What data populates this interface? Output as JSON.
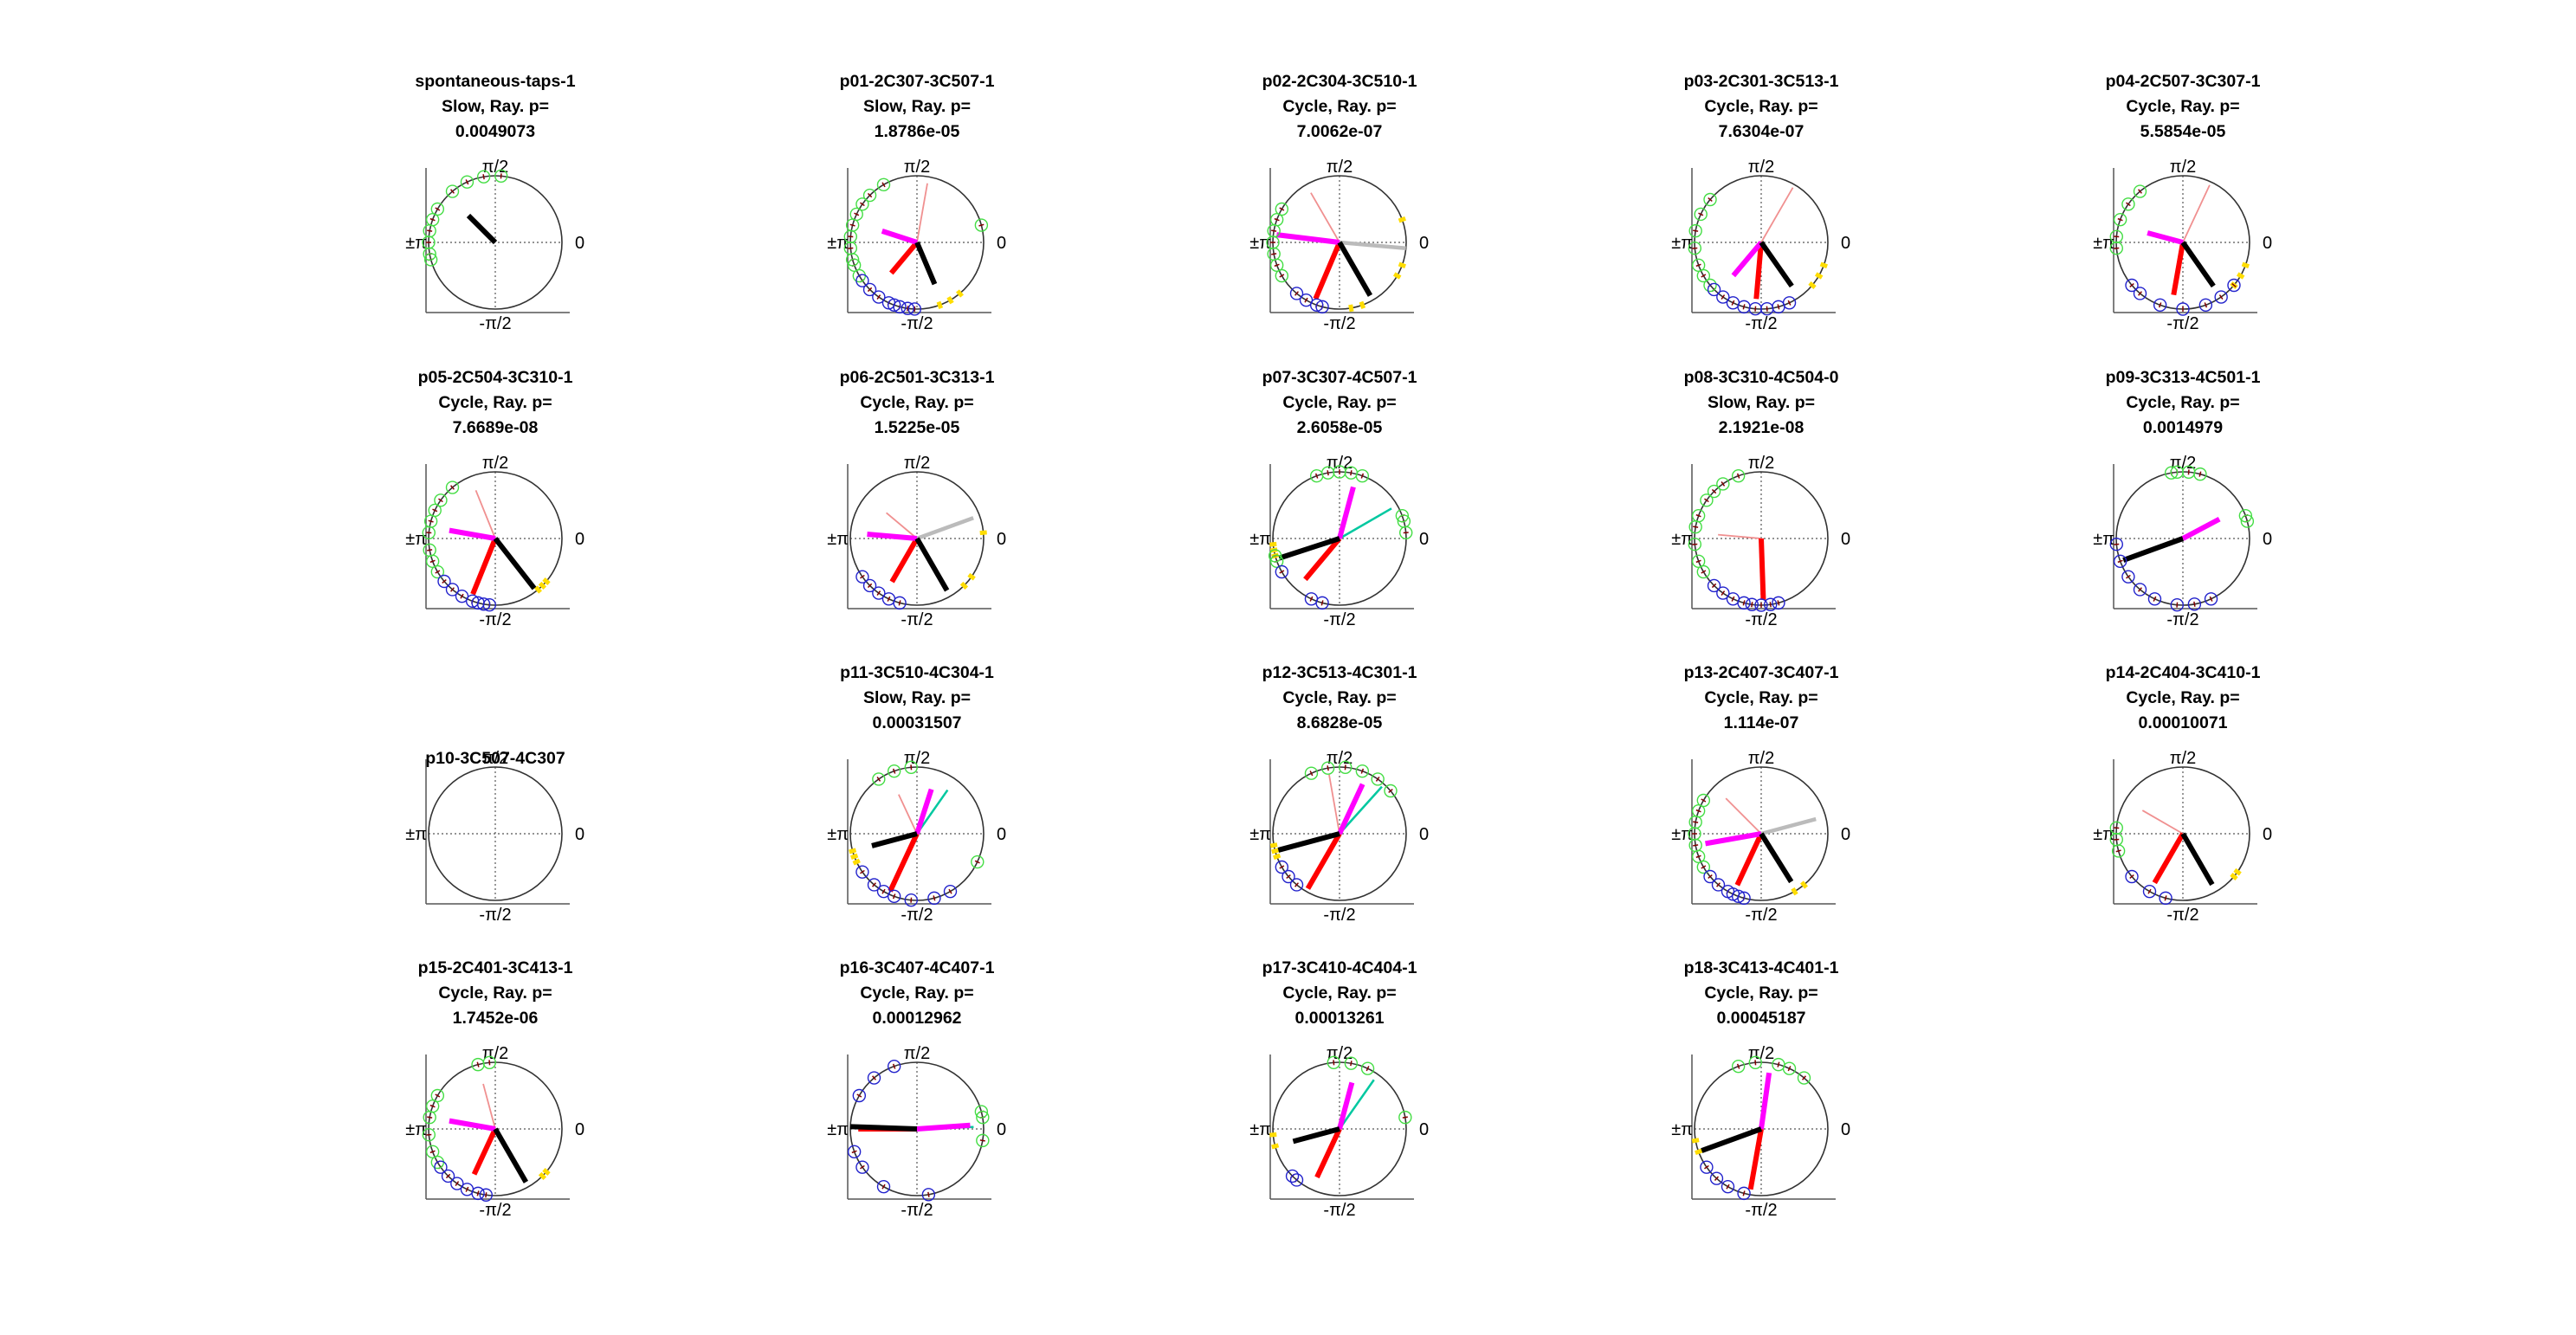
{
  "figure": {
    "axis_labels": {
      "top": "π/2",
      "bottom": "-π/2",
      "left": "±π",
      "right": "0"
    },
    "colors": {
      "mean_vector": "#000000",
      "magenta_vector": "#ff00ff",
      "red_vector": "#ff0000",
      "gray_vector": "#bbbbbb",
      "cyan_vector": "#00c8a0",
      "pink_vector": "#f09090",
      "green_markers": "#44dd44",
      "blue_markers": "#2222cc",
      "yellow_ticks": "#ffdd00"
    }
  },
  "chart_data": [
    {
      "type": "polar",
      "title": [
        "spontaneous-taps-1",
        "Slow, Ray. p=",
        "0.0049073"
      ],
      "vectors": [
        {
          "color": "black",
          "angle_deg": 135,
          "length": 0.57
        }
      ],
      "green_deg": [
        85,
        100,
        115,
        130,
        150,
        160,
        170,
        180,
        190,
        195
      ],
      "blue_deg": [],
      "yellow_deg": []
    },
    {
      "type": "polar",
      "title": [
        "p01-2C307-3C507-1",
        "Slow, Ray. p=",
        "1.8786e-05"
      ],
      "vectors": [
        {
          "color": "black",
          "angle_deg": -67,
          "length": 0.68
        },
        {
          "color": "magenta",
          "angle_deg": 162,
          "length": 0.55
        },
        {
          "color": "red",
          "angle_deg": -130,
          "length": 0.6
        },
        {
          "color": "pink",
          "angle_deg": 80,
          "length": 0.9
        }
      ],
      "green_deg": [
        120,
        135,
        145,
        155,
        165,
        175,
        185,
        195,
        200,
        210,
        15
      ],
      "blue_deg": [
        215,
        225,
        235,
        245,
        250,
        255,
        262,
        268
      ],
      "yellow_deg": [
        -70,
        -60,
        -50
      ]
    },
    {
      "type": "polar",
      "title": [
        "p02-2C304-3C510-1",
        "Cycle, Ray. p=",
        "7.0062e-07"
      ],
      "vectors": [
        {
          "color": "black",
          "angle_deg": -60,
          "length": 0.92
        },
        {
          "color": "magenta",
          "angle_deg": 173,
          "length": 0.95
        },
        {
          "color": "red",
          "angle_deg": -113,
          "length": 0.92
        },
        {
          "color": "gray",
          "angle_deg": -5,
          "length": 1.0
        },
        {
          "color": "pink",
          "angle_deg": 120,
          "length": 0.86
        }
      ],
      "green_deg": [
        150,
        160,
        170,
        180,
        190,
        200,
        210
      ],
      "blue_deg": [
        230,
        240,
        250,
        255
      ],
      "yellow_deg": [
        -80,
        -70,
        -30,
        -20,
        20
      ]
    },
    {
      "type": "polar",
      "title": [
        "p03-2C301-3C513-1",
        "Cycle, Ray. p=",
        "7.6304e-07"
      ],
      "vectors": [
        {
          "color": "black",
          "angle_deg": -55,
          "length": 0.8
        },
        {
          "color": "magenta",
          "angle_deg": -130,
          "length": 0.65
        },
        {
          "color": "red",
          "angle_deg": -95,
          "length": 0.85
        },
        {
          "color": "pink",
          "angle_deg": 60,
          "length": 0.95
        }
      ],
      "green_deg": [
        140,
        155,
        170,
        185,
        200,
        210,
        220
      ],
      "blue_deg": [
        225,
        235,
        245,
        255,
        265,
        275,
        285,
        295
      ],
      "yellow_deg": [
        -40,
        -30,
        -20
      ]
    },
    {
      "type": "polar",
      "title": [
        "p04-2C507-3C307-1",
        "Cycle, Ray. p=",
        "5.5854e-05"
      ],
      "vectors": [
        {
          "color": "black",
          "angle_deg": -55,
          "length": 0.8
        },
        {
          "color": "magenta",
          "angle_deg": 165,
          "length": 0.55
        },
        {
          "color": "red",
          "angle_deg": -100,
          "length": 0.8
        },
        {
          "color": "pink",
          "angle_deg": 65,
          "length": 0.95
        }
      ],
      "green_deg": [
        130,
        145,
        160,
        175,
        185
      ],
      "blue_deg": [
        220,
        230,
        250,
        270,
        290,
        305,
        320
      ],
      "yellow_deg": [
        -40,
        -30,
        -20
      ]
    },
    {
      "type": "polar",
      "title": [
        "p05-2C504-3C310-1",
        "Cycle, Ray. p=",
        "7.6689e-08"
      ],
      "vectors": [
        {
          "color": "black",
          "angle_deg": -52,
          "length": 0.95
        },
        {
          "color": "magenta",
          "angle_deg": 170,
          "length": 0.7
        },
        {
          "color": "red",
          "angle_deg": -112,
          "length": 0.9
        },
        {
          "color": "pink",
          "angle_deg": 112,
          "length": 0.78
        }
      ],
      "green_deg": [
        130,
        145,
        155,
        165,
        175,
        190,
        200,
        210
      ],
      "blue_deg": [
        220,
        230,
        240,
        250,
        255,
        260,
        265
      ],
      "yellow_deg": [
        -50,
        -45,
        -40
      ]
    },
    {
      "type": "polar",
      "title": [
        "p06-2C501-3C313-1",
        "Cycle, Ray. p=",
        "1.5225e-05"
      ],
      "vectors": [
        {
          "color": "black",
          "angle_deg": -60,
          "length": 0.9
        },
        {
          "color": "magenta",
          "angle_deg": 175,
          "length": 0.75
        },
        {
          "color": "red",
          "angle_deg": -120,
          "length": 0.75
        },
        {
          "color": "gray",
          "angle_deg": 20,
          "length": 0.9
        },
        {
          "color": "pink",
          "angle_deg": 140,
          "length": 0.6
        }
      ],
      "green_deg": [],
      "blue_deg": [
        215,
        225,
        235,
        245,
        255
      ],
      "yellow_deg": [
        -45,
        -35,
        5
      ]
    },
    {
      "type": "polar",
      "title": [
        "p07-3C307-4C507-1",
        "Cycle, Ray. p=",
        "2.6058e-05"
      ],
      "vectors": [
        {
          "color": "black",
          "angle_deg": -162,
          "length": 0.95
        },
        {
          "color": "magenta",
          "angle_deg": 75,
          "length": 0.8
        },
        {
          "color": "red",
          "angle_deg": -130,
          "length": 0.8
        },
        {
          "color": "cyan",
          "angle_deg": 30,
          "length": 0.9
        }
      ],
      "green_deg": [
        70,
        80,
        90,
        100,
        110,
        15,
        20,
        5,
        195,
        200
      ],
      "blue_deg": [
        210,
        245,
        255
      ],
      "yellow_deg": [
        185,
        190,
        195
      ]
    },
    {
      "type": "polar",
      "title": [
        "p08-3C310-4C504-0",
        "Slow, Ray. p=",
        "2.1921e-08"
      ],
      "vectors": [
        {
          "color": "red",
          "angle_deg": -88,
          "length": 0.92
        },
        {
          "color": "pink",
          "angle_deg": 175,
          "length": 0.65
        }
      ],
      "green_deg": [
        110,
        125,
        135,
        145,
        160,
        170,
        185,
        200,
        210
      ],
      "blue_deg": [
        225,
        235,
        245,
        255,
        262,
        270,
        278,
        285
      ],
      "yellow_deg": []
    },
    {
      "type": "polar",
      "title": [
        "p09-3C313-4C501-1",
        "Cycle, Ray. p=",
        "0.0014979"
      ],
      "vectors": [
        {
          "color": "black",
          "angle_deg": -160,
          "length": 0.95
        },
        {
          "color": "magenta",
          "angle_deg": 28,
          "length": 0.62
        }
      ],
      "green_deg": [
        75,
        85,
        95,
        100,
        15,
        20
      ],
      "blue_deg": [
        185,
        200,
        215,
        230,
        245,
        265,
        280,
        295
      ],
      "yellow_deg": []
    },
    {
      "type": "polar",
      "title": [
        "p10-3C507-4C307"
      ],
      "vectors": [],
      "green_deg": [],
      "blue_deg": [],
      "yellow_deg": []
    },
    {
      "type": "polar",
      "title": [
        "p11-3C510-4C304-1",
        "Slow, Ray. p=",
        "0.00031507"
      ],
      "vectors": [
        {
          "color": "black",
          "angle_deg": -165,
          "length": 0.7
        },
        {
          "color": "magenta",
          "angle_deg": 72,
          "length": 0.7
        },
        {
          "color": "red",
          "angle_deg": -115,
          "length": 0.95
        },
        {
          "color": "cyan",
          "angle_deg": 55,
          "length": 0.8
        },
        {
          "color": "pink",
          "angle_deg": 115,
          "length": 0.65
        }
      ],
      "green_deg": [
        95,
        110,
        125,
        -25
      ],
      "blue_deg": [
        215,
        230,
        240,
        250,
        265,
        285,
        300
      ],
      "yellow_deg": [
        195,
        200,
        205
      ]
    },
    {
      "type": "polar",
      "title": [
        "p12-3C513-4C301-1",
        "Cycle, Ray. p=",
        "8.6828e-05"
      ],
      "vectors": [
        {
          "color": "black",
          "angle_deg": -165,
          "length": 0.95
        },
        {
          "color": "magenta",
          "angle_deg": 65,
          "length": 0.82
        },
        {
          "color": "red",
          "angle_deg": -120,
          "length": 0.95
        },
        {
          "color": "cyan",
          "angle_deg": 48,
          "length": 0.95
        },
        {
          "color": "pink",
          "angle_deg": 100,
          "length": 0.9
        }
      ],
      "green_deg": [
        40,
        55,
        70,
        85,
        100,
        115
      ],
      "blue_deg": [
        210,
        220,
        230
      ],
      "yellow_deg": [
        190,
        195,
        200
      ]
    },
    {
      "type": "polar",
      "title": [
        "p13-2C407-3C407-1",
        "Cycle, Ray. p=",
        "1.114e-07"
      ],
      "vectors": [
        {
          "color": "black",
          "angle_deg": -58,
          "length": 0.85
        },
        {
          "color": "magenta",
          "angle_deg": -170,
          "length": 0.85
        },
        {
          "color": "red",
          "angle_deg": -115,
          "length": 0.85
        },
        {
          "color": "gray",
          "angle_deg": 15,
          "length": 0.85
        },
        {
          "color": "pink",
          "angle_deg": 135,
          "length": 0.75
        }
      ],
      "green_deg": [
        150,
        160,
        170,
        180,
        190,
        200,
        210
      ],
      "blue_deg": [
        220,
        230,
        240,
        245,
        250,
        255
      ],
      "yellow_deg": [
        -60,
        -50
      ]
    },
    {
      "type": "polar",
      "title": [
        "p14-2C404-3C410-1",
        "Cycle, Ray. p=",
        "0.00010071"
      ],
      "vectors": [
        {
          "color": "black",
          "angle_deg": -60,
          "length": 0.88
        },
        {
          "color": "red",
          "angle_deg": -120,
          "length": 0.85
        },
        {
          "color": "pink",
          "angle_deg": 150,
          "length": 0.7
        }
      ],
      "green_deg": [
        175,
        185,
        195
      ],
      "blue_deg": [
        220,
        240,
        255
      ],
      "yellow_deg": [
        -40,
        -35
      ]
    },
    {
      "type": "polar",
      "title": [
        "p15-2C401-3C413-1",
        "Cycle, Ray. p=",
        "1.7452e-06"
      ],
      "vectors": [
        {
          "color": "black",
          "angle_deg": -60,
          "length": 0.92
        },
        {
          "color": "magenta",
          "angle_deg": 170,
          "length": 0.7
        },
        {
          "color": "red",
          "angle_deg": -115,
          "length": 0.75
        },
        {
          "color": "pink",
          "angle_deg": 105,
          "length": 0.7
        }
      ],
      "green_deg": [
        95,
        105,
        150,
        160,
        170,
        185,
        200,
        210
      ],
      "blue_deg": [
        215,
        225,
        235,
        245,
        255,
        262
      ],
      "yellow_deg": [
        -45,
        -40
      ]
    },
    {
      "type": "polar",
      "title": [
        "p16-3C407-4C407-1",
        "Cycle, Ray. p=",
        "0.00012962"
      ],
      "vectors": [
        {
          "color": "black",
          "angle_deg": 178,
          "length": 1.0
        },
        {
          "color": "magenta",
          "angle_deg": 4,
          "length": 0.8
        },
        {
          "color": "red",
          "angle_deg": 180,
          "length": 0.88
        },
        {
          "color": "cyan",
          "angle_deg": 2,
          "length": 0.85
        }
      ],
      "green_deg": [
        10,
        15,
        -10
      ],
      "blue_deg": [
        110,
        130,
        150,
        200,
        215,
        240,
        280
      ],
      "yellow_deg": []
    },
    {
      "type": "polar",
      "title": [
        "p17-3C410-4C404-1",
        "Cycle, Ray. p=",
        "0.00013261"
      ],
      "vectors": [
        {
          "color": "black",
          "angle_deg": -165,
          "length": 0.72
        },
        {
          "color": "magenta",
          "angle_deg": 75,
          "length": 0.72
        },
        {
          "color": "red",
          "angle_deg": -115,
          "length": 0.8
        },
        {
          "color": "cyan",
          "angle_deg": 55,
          "length": 0.9
        }
      ],
      "green_deg": [
        80,
        95,
        65,
        10
      ],
      "blue_deg": [
        225,
        230
      ],
      "yellow_deg": [
        185,
        195
      ]
    },
    {
      "type": "polar",
      "title": [
        "p18-3C413-4C401-1",
        "Cycle, Ray. p=",
        "0.00045187"
      ],
      "vectors": [
        {
          "color": "black",
          "angle_deg": -160,
          "length": 0.95
        },
        {
          "color": "magenta",
          "angle_deg": 82,
          "length": 0.85
        },
        {
          "color": "red",
          "angle_deg": -100,
          "length": 0.92
        }
      ],
      "green_deg": [
        50,
        65,
        75,
        95,
        110
      ],
      "blue_deg": [
        215,
        228,
        240,
        255
      ],
      "yellow_deg": [
        190,
        200
      ]
    }
  ]
}
